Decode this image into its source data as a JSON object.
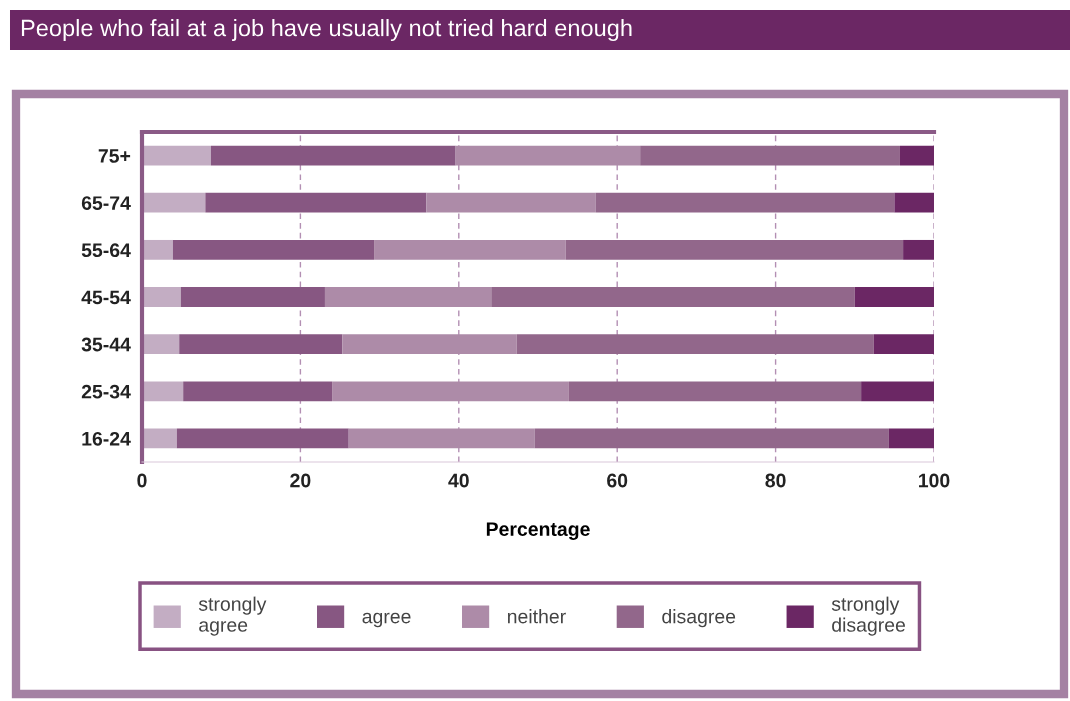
{
  "chart_data": {
    "type": "bar",
    "orientation": "horizontal",
    "stacked": true,
    "title": "People who fail at a job have usually not tried hard enough",
    "xlabel": "Percentage",
    "categories": [
      "75+",
      "65-74",
      "55-64",
      "45-54",
      "35-44",
      "25-34",
      "16-24"
    ],
    "series": [
      {
        "name": "strongly agree",
        "color": "#c3adc3",
        "values": [
          8.7,
          8.0,
          3.9,
          4.9,
          4.7,
          5.2,
          4.4
        ]
      },
      {
        "name": "agree",
        "color": "#875782",
        "values": [
          30.9,
          27.9,
          25.4,
          18.2,
          20.6,
          18.8,
          21.7
        ]
      },
      {
        "name": "neither",
        "color": "#ad8ba8",
        "values": [
          23.3,
          21.4,
          24.2,
          21.0,
          22.0,
          29.9,
          23.5
        ]
      },
      {
        "name": "disagree",
        "color": "#92678b",
        "values": [
          32.8,
          37.7,
          42.6,
          45.9,
          45.1,
          36.9,
          44.7
        ]
      },
      {
        "name": "strongly disagree",
        "color": "#6b2764",
        "values": [
          4.3,
          5.0,
          3.9,
          10.0,
          7.6,
          9.2,
          5.7
        ]
      }
    ],
    "xlim": [
      0,
      100
    ],
    "xticks": [
      0,
      20,
      40,
      60,
      80,
      100
    ],
    "grid": "x",
    "legend": "bottom"
  }
}
